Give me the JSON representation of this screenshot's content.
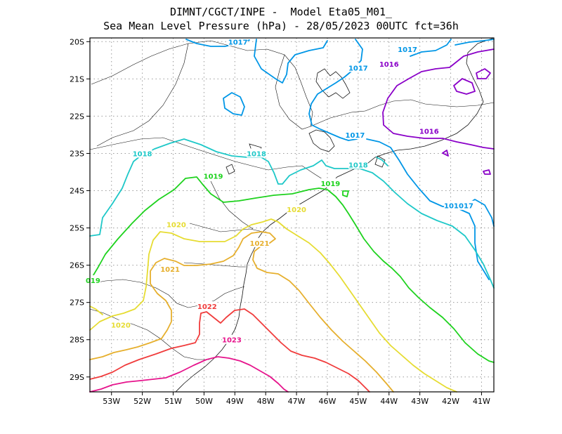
{
  "chart_data": {
    "type": "contour-map",
    "title_line1": "DIMNT/CGCT/INPE -  Model Eta05_M01_",
    "title_line2": "Sea Mean Level Pressure (hPa) - 28/05/2023 00UTC fct=36h",
    "units": "hPa",
    "lon_range": [
      -53.7,
      -40.6
    ],
    "lat_range": [
      -29.4,
      -19.9
    ],
    "grid": true,
    "x_ticks": [
      -53,
      -52,
      -51,
      -50,
      -49,
      -48,
      -47,
      -46,
      -45,
      -44,
      -43,
      -42,
      -41
    ],
    "x_tick_labels": [
      "53W",
      "52W",
      "51W",
      "50W",
      "49W",
      "48W",
      "47W",
      "46W",
      "45W",
      "44W",
      "43W",
      "42W",
      "41W"
    ],
    "y_ticks": [
      -20,
      -21,
      -22,
      -23,
      -24,
      -25,
      -26,
      -27,
      -28,
      -29
    ],
    "y_tick_labels": [
      "20S",
      "21S",
      "22S",
      "23S",
      "24S",
      "25S",
      "26S",
      "27S",
      "28S",
      "29S"
    ],
    "levels": [
      {
        "value": 1016,
        "color": "#8a00c8",
        "labels": [
          {
            "text": "1016",
            "lon": -44.0,
            "lat": -20.6
          },
          {
            "text": "1016",
            "lon": -42.7,
            "lat": -22.4
          }
        ]
      },
      {
        "value": 1017,
        "color": "#0096e6",
        "labels": [
          {
            "text": "1017",
            "lon": -48.9,
            "lat": -20.0
          },
          {
            "text": "1017",
            "lon": -43.4,
            "lat": -20.2
          },
          {
            "text": "1017",
            "lon": -45.0,
            "lat": -20.7
          },
          {
            "text": "1017",
            "lon": -45.1,
            "lat": -22.5
          },
          {
            "text": "1017",
            "lon": -41.9,
            "lat": -24.4
          },
          {
            "text": "017",
            "lon": -41.5,
            "lat": -24.4
          }
        ]
      },
      {
        "value": 1018,
        "color": "#1ec8c8",
        "labels": [
          {
            "text": "1018",
            "lon": -52.0,
            "lat": -23.0
          },
          {
            "text": "1018",
            "lon": -48.3,
            "lat": -23.0
          },
          {
            "text": "1018",
            "lon": -45.0,
            "lat": -23.3
          }
        ]
      },
      {
        "value": 1019,
        "color": "#1ed21e",
        "labels": [
          {
            "text": "1019",
            "lon": -49.7,
            "lat": -23.6
          },
          {
            "text": "1019",
            "lon": -45.9,
            "lat": -23.8
          },
          {
            "text": "019",
            "lon": -53.6,
            "lat": -26.4
          }
        ]
      },
      {
        "value": 1020,
        "color": "#e6dc32",
        "labels": [
          {
            "text": "1020",
            "lon": -50.9,
            "lat": -24.9
          },
          {
            "text": "1020",
            "lon": -47.0,
            "lat": -24.5
          },
          {
            "text": "1020",
            "lon": -52.7,
            "lat": -27.6
          }
        ]
      },
      {
        "value": 1021,
        "color": "#e6af2d",
        "labels": [
          {
            "text": "1021",
            "lon": -48.2,
            "lat": -25.4
          },
          {
            "text": "1021",
            "lon": -51.1,
            "lat": -26.1
          }
        ]
      },
      {
        "value": 1022,
        "color": "#f03c3c",
        "labels": [
          {
            "text": "1022",
            "lon": -49.9,
            "lat": -27.1
          }
        ]
      },
      {
        "value": 1023,
        "color": "#e6148c",
        "labels": [
          {
            "text": "1023",
            "lon": -49.1,
            "lat": -28.0
          }
        ]
      }
    ]
  }
}
